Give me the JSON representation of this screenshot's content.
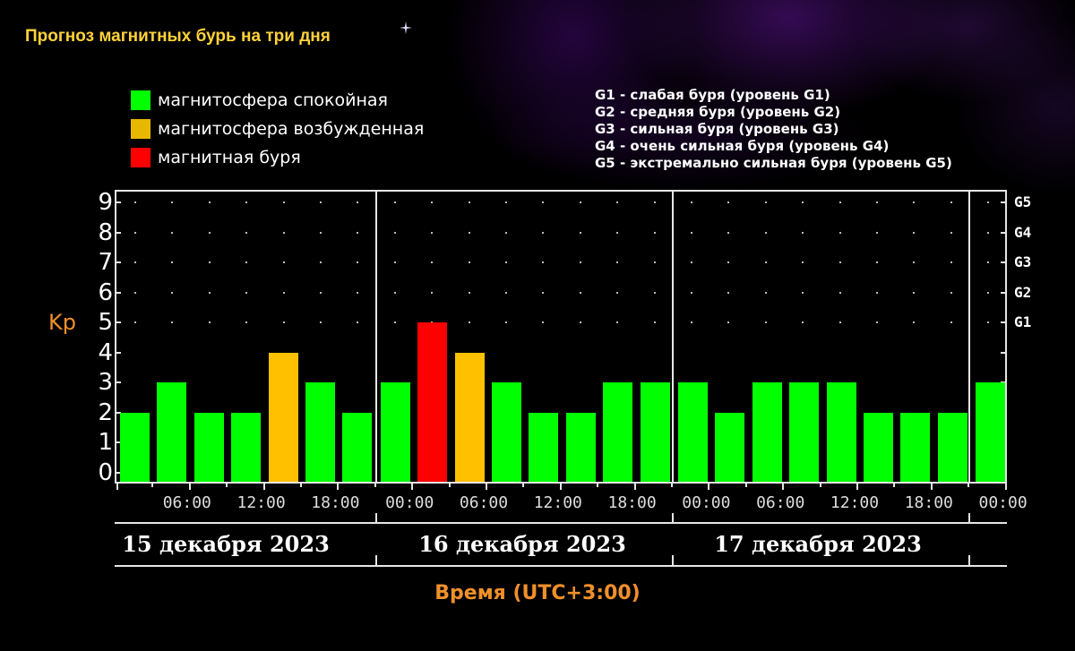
{
  "page": {
    "title": "Прогноз магнитных бурь на три дня"
  },
  "legend": {
    "items": [
      {
        "label": "магнитосфера спокойная",
        "color": "#00ff00"
      },
      {
        "label": "магнитосфера возбужденная",
        "color": "#e8b800"
      },
      {
        "label": "магнитная буря",
        "color": "#ff0000"
      }
    ]
  },
  "g_legend": {
    "items": [
      "G1 - слабая буря (уровень G1)",
      "G2 - средняя буря (уровень G2)",
      "G3 - сильная буря (уровень G3)",
      "G4 - очень сильная буря (уровень G4)",
      "G5 - экстремально сильная буря (уровень G5)"
    ]
  },
  "colors": {
    "calm": "#00ff00",
    "excited": "#ffc000",
    "storm": "#ff0000",
    "axis": "#e6e6e6",
    "title": "#ffd23a",
    "axis_title": "#f0902a"
  },
  "chart_data": {
    "type": "bar",
    "title": "Прогноз магнитных бурь на три дня",
    "xlabel": "Время (UTC+3:00)",
    "ylabel": "Kp",
    "ylim": [
      0,
      9
    ],
    "yticks": [
      0,
      1,
      2,
      3,
      4,
      5,
      6,
      7,
      8,
      9
    ],
    "right_axis_labels": [
      {
        "value": 5,
        "label": "G1"
      },
      {
        "value": 6,
        "label": "G2"
      },
      {
        "value": 7,
        "label": "G3"
      },
      {
        "value": 8,
        "label": "G4"
      },
      {
        "value": 9,
        "label": "G5"
      }
    ],
    "grid": "dotted",
    "x_tick_labels": [
      "06:00",
      "12:00",
      "18:00",
      "00:00",
      "06:00",
      "12:00",
      "18:00",
      "00:00",
      "06:00",
      "12:00",
      "18:00",
      "00:00"
    ],
    "dates": [
      "15 декабря 2023",
      "16 декабря 2023",
      "17 декабря 2023"
    ],
    "categories": [
      "15.12 00:00",
      "15.12 03:00",
      "15.12 06:00",
      "15.12 09:00",
      "15.12 12:00",
      "15.12 15:00",
      "15.12 18:00",
      "15.12 21:00",
      "16.12 00:00",
      "16.12 03:00",
      "16.12 06:00",
      "16.12 09:00",
      "16.12 12:00",
      "16.12 15:00",
      "16.12 18:00",
      "16.12 21:00",
      "17.12 00:00",
      "17.12 03:00",
      "17.12 06:00",
      "17.12 09:00",
      "17.12 12:00",
      "17.12 15:00",
      "17.12 18:00",
      "17.12 21:00"
    ],
    "values": [
      2,
      3,
      2,
      2,
      4,
      3,
      2,
      3,
      5,
      4,
      3,
      2,
      2,
      3,
      3,
      3,
      2,
      3,
      3,
      3,
      2,
      2,
      2,
      3
    ],
    "status": [
      "calm",
      "calm",
      "calm",
      "calm",
      "excited",
      "calm",
      "calm",
      "calm",
      "storm",
      "excited",
      "calm",
      "calm",
      "calm",
      "calm",
      "calm",
      "calm",
      "calm",
      "calm",
      "calm",
      "calm",
      "calm",
      "calm",
      "calm",
      "calm"
    ],
    "legend_position": "top-left"
  }
}
